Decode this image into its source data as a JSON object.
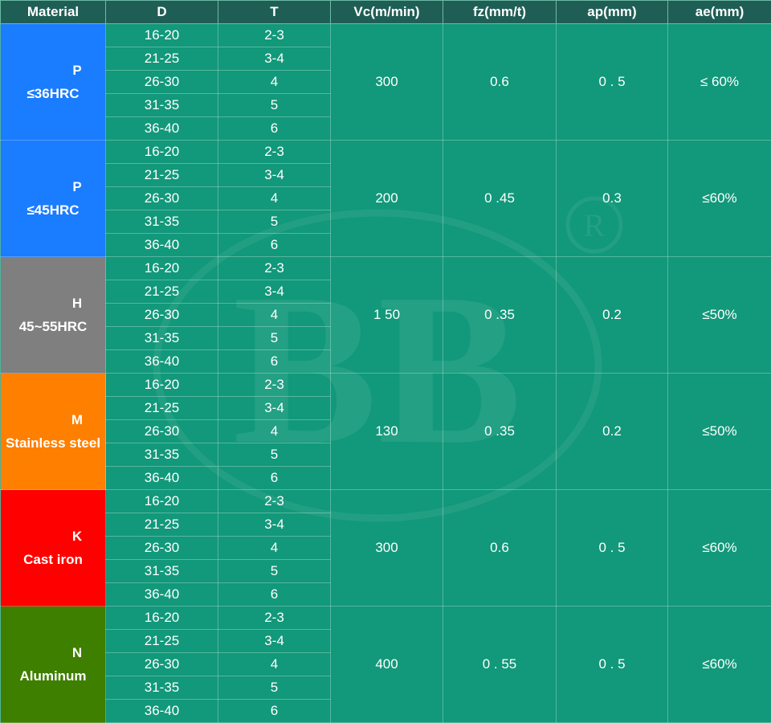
{
  "header": {
    "material": "Material",
    "d": "D",
    "t": "T",
    "vc": "Vc(m/min)",
    "fz": "fz(mm/t)",
    "ap": "ap(mm)",
    "ae": "ae(mm)"
  },
  "groups": [
    {
      "code": "P",
      "desc": "≤36HRC",
      "color": "#1a7cff",
      "vc": "300",
      "fz": "0.6",
      "ap": "0 . 5",
      "ae": "≤ 60%",
      "rows": [
        {
          "d": "16-20",
          "t": "2-3"
        },
        {
          "d": "21-25",
          "t": "3-4"
        },
        {
          "d": "26-30",
          "t": "4"
        },
        {
          "d": "31-35",
          "t": "5"
        },
        {
          "d": "36-40",
          "t": "6"
        }
      ]
    },
    {
      "code": "P",
      "desc": "≤45HRC",
      "color": "#1a7cff",
      "vc": "200",
      "fz": "0 .45",
      "ap": "0.3",
      "ae": "≤60%",
      "rows": [
        {
          "d": "16-20",
          "t": "2-3"
        },
        {
          "d": "21-25",
          "t": "3-4"
        },
        {
          "d": "26-30",
          "t": "4"
        },
        {
          "d": "31-35",
          "t": "5"
        },
        {
          "d": "36-40",
          "t": "6"
        }
      ]
    },
    {
      "code": "H",
      "desc": "45~55HRC",
      "color": "#7f7f7f",
      "vc": "1 50",
      "fz": "0 .35",
      "ap": "0.2",
      "ae": "≤50%",
      "rows": [
        {
          "d": "16-20",
          "t": "2-3"
        },
        {
          "d": "21-25",
          "t": "3-4"
        },
        {
          "d": "26-30",
          "t": "4"
        },
        {
          "d": "31-35",
          "t": "5"
        },
        {
          "d": "36-40",
          "t": "6"
        }
      ]
    },
    {
      "code": "M",
      "desc": "Stainless steel",
      "color": "#ff7f00",
      "vc": "130",
      "fz": "0 .35",
      "ap": "0.2",
      "ae": "≤50%",
      "rows": [
        {
          "d": "16-20",
          "t": "2-3"
        },
        {
          "d": "21-25",
          "t": "3-4"
        },
        {
          "d": "26-30",
          "t": "4"
        },
        {
          "d": "31-35",
          "t": "5"
        },
        {
          "d": "36-40",
          "t": "6"
        }
      ]
    },
    {
      "code": "K",
      "desc": "Cast iron",
      "color": "#ff0000",
      "vc": "300",
      "fz": "0.6",
      "ap": "0 . 5",
      "ae": "≤60%",
      "rows": [
        {
          "d": "16-20",
          "t": "2-3"
        },
        {
          "d": "21-25",
          "t": "3-4"
        },
        {
          "d": "26-30",
          "t": "4"
        },
        {
          "d": "31-35",
          "t": "5"
        },
        {
          "d": "36-40",
          "t": "6"
        }
      ]
    },
    {
      "code": "N",
      "desc": "Aluminum",
      "color": "#3f7f00",
      "vc": "400",
      "fz": "0 . 55",
      "ap": "0 . 5",
      "ae": "≤60%",
      "rows": [
        {
          "d": "16-20",
          "t": "2-3"
        },
        {
          "d": "21-25",
          "t": "3-4"
        },
        {
          "d": "26-30",
          "t": "4"
        },
        {
          "d": "31-35",
          "t": "5"
        },
        {
          "d": "36-40",
          "t": "6"
        }
      ]
    }
  ],
  "watermark": {
    "text": "BB",
    "registered_mark": "R"
  }
}
